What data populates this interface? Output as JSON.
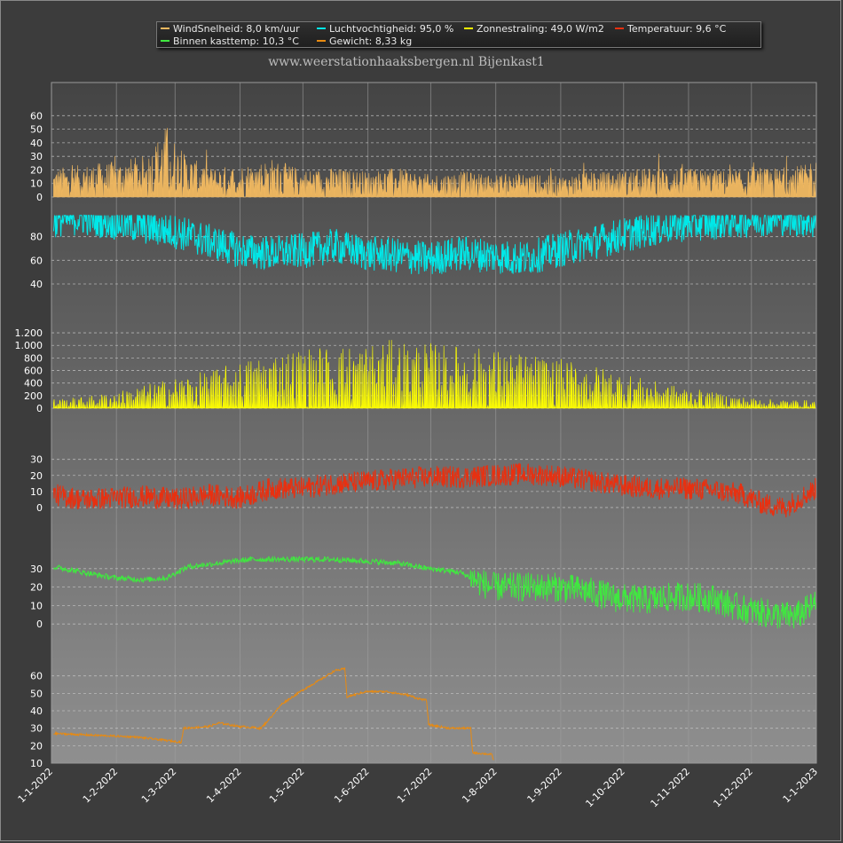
{
  "subtitle": "www.weerstationhaaksbergen.nl Bijenkast1",
  "legend": [
    {
      "label": "WindSnelheid: 8,0 km/uur",
      "color": "#f0b860"
    },
    {
      "label": "Luchtvochtigheid: 95,0 %",
      "color": "#00e8e8"
    },
    {
      "label": "Zonnestraling: 49,0 W/m2",
      "color": "#ffff00"
    },
    {
      "label": "Temperatuur: 9,6 °C",
      "color": "#e83010"
    },
    {
      "label": "Binnen kasttemp: 10,3 °C",
      "color": "#40e840"
    },
    {
      "label": "Gewicht: 8,33 kg",
      "color": "#e88a10"
    }
  ],
  "chart_data": {
    "type": "line",
    "x_labels": [
      "1-1-2022",
      "1-2-2022",
      "1-3-2022",
      "1-4-2022",
      "1-5-2022",
      "1-6-2022",
      "1-7-2022",
      "1-8-2022",
      "1-9-2022",
      "1-10-2022",
      "1-11-2022",
      "1-12-2022",
      "1-1-2023"
    ],
    "x_range": [
      "2022-01-01",
      "2023-01-01"
    ],
    "grid": true,
    "panels": [
      {
        "series": "WindSnelheid",
        "color": "#f0b860",
        "fill": true,
        "ylim": [
          0,
          72
        ],
        "yticks": [
          0,
          10,
          20,
          30,
          40,
          50,
          60
        ],
        "ytick_labels": [
          "0",
          "10",
          "20",
          "30",
          "40",
          "50",
          "60"
        ],
        "points": [
          [
            1,
            18
          ],
          [
            15,
            20
          ],
          [
            30,
            22
          ],
          [
            45,
            26
          ],
          [
            55,
            45
          ],
          [
            62,
            28
          ],
          [
            75,
            18
          ],
          [
            90,
            20
          ],
          [
            105,
            24
          ],
          [
            120,
            17
          ],
          [
            135,
            18
          ],
          [
            150,
            16
          ],
          [
            165,
            18
          ],
          [
            180,
            14
          ],
          [
            195,
            16
          ],
          [
            210,
            14
          ],
          [
            225,
            15
          ],
          [
            240,
            13
          ],
          [
            255,
            15
          ],
          [
            270,
            16
          ],
          [
            285,
            18
          ],
          [
            300,
            18
          ],
          [
            315,
            17
          ],
          [
            330,
            16
          ],
          [
            345,
            18
          ],
          [
            360,
            20
          ],
          [
            365,
            28
          ]
        ]
      },
      {
        "series": "Luchtvochtigheid",
        "color": "#00e8e8",
        "fill": false,
        "ylim": [
          25,
          100
        ],
        "yticks": [
          40,
          60,
          80
        ],
        "ytick_labels": [
          "40",
          "60",
          "80"
        ],
        "points": [
          [
            1,
            88
          ],
          [
            15,
            90
          ],
          [
            30,
            86
          ],
          [
            45,
            82
          ],
          [
            60,
            78
          ],
          [
            75,
            70
          ],
          [
            90,
            62
          ],
          [
            105,
            60
          ],
          [
            120,
            62
          ],
          [
            135,
            66
          ],
          [
            150,
            60
          ],
          [
            165,
            58
          ],
          [
            180,
            55
          ],
          [
            195,
            60
          ],
          [
            210,
            58
          ],
          [
            225,
            55
          ],
          [
            240,
            62
          ],
          [
            255,
            68
          ],
          [
            270,
            74
          ],
          [
            285,
            80
          ],
          [
            300,
            84
          ],
          [
            315,
            86
          ],
          [
            330,
            88
          ],
          [
            345,
            90
          ],
          [
            360,
            88
          ],
          [
            365,
            85
          ]
        ]
      },
      {
        "series": "Zonnestraling",
        "color": "#ffff00",
        "fill": true,
        "ylim": [
          0,
          1300
        ],
        "yticks": [
          0,
          200,
          400,
          600,
          800,
          1000,
          1200
        ],
        "ytick_labels": [
          "0",
          "200",
          "400",
          "600",
          "800",
          "1.000",
          "1.200"
        ],
        "points": [
          [
            1,
            150
          ],
          [
            15,
            180
          ],
          [
            30,
            260
          ],
          [
            45,
            380
          ],
          [
            60,
            500
          ],
          [
            75,
            600
          ],
          [
            90,
            750
          ],
          [
            105,
            900
          ],
          [
            120,
            980
          ],
          [
            135,
            1000
          ],
          [
            150,
            1050
          ],
          [
            165,
            1100
          ],
          [
            180,
            1050
          ],
          [
            195,
            1000
          ],
          [
            210,
            950
          ],
          [
            225,
            880
          ],
          [
            240,
            800
          ],
          [
            255,
            720
          ],
          [
            270,
            600
          ],
          [
            285,
            450
          ],
          [
            300,
            350
          ],
          [
            315,
            260
          ],
          [
            330,
            180
          ],
          [
            345,
            140
          ],
          [
            360,
            130
          ],
          [
            365,
            120
          ]
        ]
      },
      {
        "series": "Temperatuur",
        "color": "#e83010",
        "fill": false,
        "ylim": [
          -10,
          42
        ],
        "yticks": [
          0,
          10,
          20,
          30
        ],
        "ytick_labels": [
          "0",
          "10",
          "20",
          "30"
        ],
        "points": [
          [
            1,
            8
          ],
          [
            15,
            5
          ],
          [
            30,
            6
          ],
          [
            45,
            7
          ],
          [
            60,
            5
          ],
          [
            75,
            8
          ],
          [
            90,
            6
          ],
          [
            105,
            12
          ],
          [
            120,
            12
          ],
          [
            135,
            15
          ],
          [
            150,
            16
          ],
          [
            165,
            18
          ],
          [
            180,
            19
          ],
          [
            195,
            19
          ],
          [
            210,
            20
          ],
          [
            225,
            21
          ],
          [
            240,
            20
          ],
          [
            255,
            17
          ],
          [
            270,
            14
          ],
          [
            285,
            12
          ],
          [
            300,
            12
          ],
          [
            315,
            11
          ],
          [
            330,
            8
          ],
          [
            340,
            2
          ],
          [
            350,
            0
          ],
          [
            360,
            8
          ],
          [
            365,
            12
          ]
        ]
      },
      {
        "series": "Binnen kasttemp",
        "color": "#40e840",
        "fill": false,
        "ylim": [
          -10,
          40
        ],
        "yticks": [
          0,
          10,
          20,
          30
        ],
        "ytick_labels": [
          "0",
          "10",
          "20",
          "30"
        ],
        "points": [
          [
            1,
            31
          ],
          [
            15,
            28
          ],
          [
            30,
            25
          ],
          [
            45,
            24
          ],
          [
            55,
            25
          ],
          [
            65,
            31
          ],
          [
            80,
            33
          ],
          [
            95,
            35
          ],
          [
            110,
            35
          ],
          [
            125,
            35
          ],
          [
            135,
            35
          ],
          [
            150,
            34
          ],
          [
            165,
            33
          ],
          [
            180,
            30
          ],
          [
            195,
            28
          ],
          [
            200,
            25
          ],
          [
            210,
            20
          ],
          [
            225,
            20
          ],
          [
            240,
            20
          ],
          [
            255,
            18
          ],
          [
            270,
            14
          ],
          [
            285,
            13
          ],
          [
            300,
            15
          ],
          [
            315,
            14
          ],
          [
            330,
            8
          ],
          [
            345,
            5
          ],
          [
            355,
            4
          ],
          [
            365,
            11
          ]
        ]
      },
      {
        "series": "Gewicht",
        "color": "#e88a10",
        "fill": false,
        "ylim": [
          10,
          69
        ],
        "yticks": [
          10,
          20,
          30,
          40,
          50,
          60
        ],
        "ytick_labels": [
          "10",
          "20",
          "30",
          "40",
          "50",
          "60"
        ],
        "points": [
          [
            1,
            27
          ],
          [
            20,
            26
          ],
          [
            40,
            25
          ],
          [
            55,
            23
          ],
          [
            62,
            22
          ],
          [
            63,
            30
          ],
          [
            75,
            31
          ],
          [
            80,
            33
          ],
          [
            90,
            31
          ],
          [
            100,
            30
          ],
          [
            103,
            34
          ],
          [
            110,
            44
          ],
          [
            120,
            52
          ],
          [
            130,
            59
          ],
          [
            135,
            63
          ],
          [
            140,
            64
          ],
          [
            141,
            48
          ],
          [
            150,
            51
          ],
          [
            160,
            51
          ],
          [
            170,
            49
          ],
          [
            175,
            47
          ],
          [
            179,
            46
          ],
          [
            180,
            32
          ],
          [
            190,
            30
          ],
          [
            200,
            30
          ],
          [
            201,
            16
          ],
          [
            210,
            15
          ],
          [
            211,
            12
          ]
        ]
      }
    ]
  }
}
